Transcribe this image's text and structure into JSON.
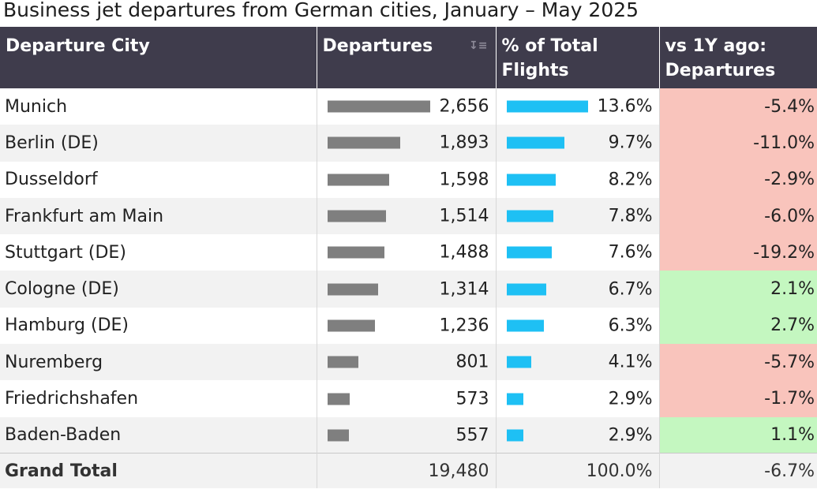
{
  "title": "Business jet departures from German cities, January – May 2025",
  "columns": {
    "city": "Departure City",
    "departures": "Departures",
    "pct": "% of Total Flights",
    "change": "vs 1Y ago: Departures"
  },
  "icons": {
    "sort": "sort-descending-icon"
  },
  "colors": {
    "header_bg": "#3f3c4c",
    "departures_bar": "#7f7f7f",
    "pct_bar": "#1ec0f4",
    "negative_bg": "#f9c4bc",
    "positive_bg": "#c4f7c0"
  },
  "chart_data": {
    "type": "table",
    "title": "Business jet departures from German cities, January – May 2025",
    "headers": [
      "Departure City",
      "Departures",
      "% of Total Flights",
      "vs 1Y ago: Departures"
    ],
    "rows": [
      {
        "city": "Munich",
        "departures": 2656,
        "departures_label": "2,656",
        "pct": 13.6,
        "pct_label": "13.6%",
        "change": -5.4,
        "change_label": "-5.4%"
      },
      {
        "city": "Berlin (DE)",
        "departures": 1893,
        "departures_label": "1,893",
        "pct": 9.7,
        "pct_label": "9.7%",
        "change": -11.0,
        "change_label": "-11.0%"
      },
      {
        "city": "Dusseldorf",
        "departures": 1598,
        "departures_label": "1,598",
        "pct": 8.2,
        "pct_label": "8.2%",
        "change": -2.9,
        "change_label": "-2.9%"
      },
      {
        "city": "Frankfurt am Main",
        "departures": 1514,
        "departures_label": "1,514",
        "pct": 7.8,
        "pct_label": "7.8%",
        "change": -6.0,
        "change_label": "-6.0%"
      },
      {
        "city": "Stuttgart (DE)",
        "departures": 1488,
        "departures_label": "1,488",
        "pct": 7.6,
        "pct_label": "7.6%",
        "change": -19.2,
        "change_label": "-19.2%"
      },
      {
        "city": "Cologne (DE)",
        "departures": 1314,
        "departures_label": "1,314",
        "pct": 6.7,
        "pct_label": "6.7%",
        "change": 2.1,
        "change_label": "2.1%"
      },
      {
        "city": "Hamburg (DE)",
        "departures": 1236,
        "departures_label": "1,236",
        "pct": 6.3,
        "pct_label": "6.3%",
        "change": 2.7,
        "change_label": "2.7%"
      },
      {
        "city": "Nuremberg",
        "departures": 801,
        "departures_label": "801",
        "pct": 4.1,
        "pct_label": "4.1%",
        "change": -5.7,
        "change_label": "-5.7%"
      },
      {
        "city": "Friedrichshafen",
        "departures": 573,
        "departures_label": "573",
        "pct": 2.9,
        "pct_label": "2.9%",
        "change": -1.7,
        "change_label": "-1.7%"
      },
      {
        "city": "Baden-Baden",
        "departures": 557,
        "departures_label": "557",
        "pct": 2.9,
        "pct_label": "2.9%",
        "change": 1.1,
        "change_label": "1.1%"
      }
    ],
    "total": {
      "label": "Grand Total",
      "departures": 19480,
      "departures_label": "19,480",
      "pct_label": "100.0%",
      "change_label": "-6.7%"
    }
  }
}
